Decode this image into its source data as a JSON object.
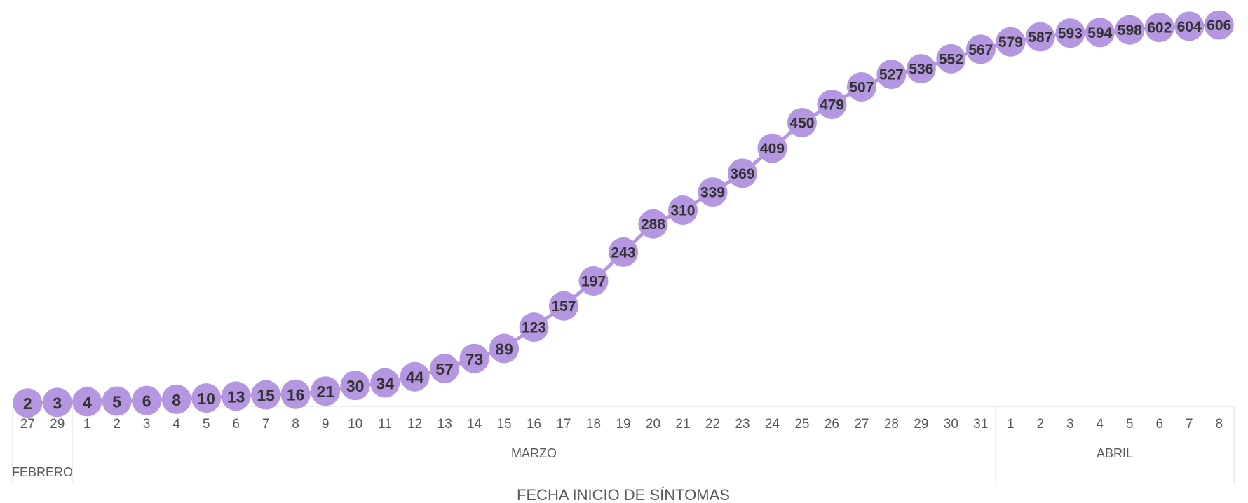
{
  "chart_data": {
    "type": "line",
    "title": "",
    "xlabel": "FECHA INICIO DE SÍNTOMAS",
    "ylabel": "",
    "ylim": [
      0,
      610
    ],
    "grid": false,
    "legend": "none",
    "marker": "circle",
    "data_labels": true,
    "colors": {
      "series": "#b596e0",
      "label_text": "#333333",
      "axis_text": "#595959",
      "axis_line": "#d9d9d9"
    },
    "x_groups": [
      {
        "label": "FEBRERO",
        "start": 0,
        "count": 2
      },
      {
        "label": "MARZO",
        "start": 2,
        "count": 31
      },
      {
        "label": "ABRIL",
        "start": 33,
        "count": 8
      }
    ],
    "categories": [
      "27",
      "29",
      "1",
      "2",
      "3",
      "4",
      "5",
      "6",
      "7",
      "8",
      "9",
      "10",
      "11",
      "12",
      "13",
      "14",
      "15",
      "16",
      "17",
      "18",
      "19",
      "20",
      "21",
      "22",
      "23",
      "24",
      "25",
      "26",
      "27",
      "28",
      "29",
      "30",
      "31",
      "1",
      "2",
      "3",
      "4",
      "5",
      "6",
      "7",
      "8"
    ],
    "series": [
      {
        "values": [
          2,
          3,
          4,
          5,
          6,
          8,
          10,
          13,
          15,
          16,
          21,
          30,
          34,
          44,
          57,
          73,
          89,
          123,
          157,
          197,
          243,
          288,
          310,
          339,
          369,
          409,
          450,
          479,
          507,
          527,
          536,
          552,
          567,
          579,
          587,
          593,
          594,
          598,
          602,
          604,
          606
        ]
      }
    ]
  }
}
